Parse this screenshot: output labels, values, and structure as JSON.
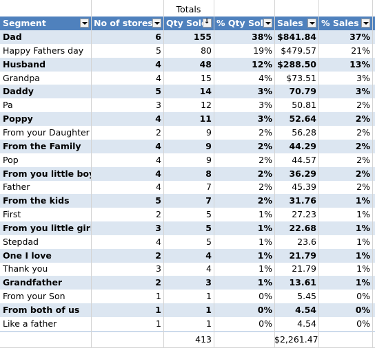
{
  "title": "Totals",
  "columns": [
    "Segment",
    "No of stores",
    "Qty Sold",
    "% Qty Sold",
    "Sales",
    "% Sales"
  ],
  "rows": [
    [
      "Dad",
      "6",
      "155",
      "38%",
      "$841.84",
      "37%"
    ],
    [
      "Happy Fathers day",
      "5",
      "80",
      "19%",
      "$479.57",
      "21%"
    ],
    [
      "Husband",
      "4",
      "48",
      "12%",
      "$288.50",
      "13%"
    ],
    [
      "Grandpa",
      "4",
      "15",
      "4%",
      "$73.51",
      "3%"
    ],
    [
      "Daddy",
      "5",
      "14",
      "3%",
      "70.79",
      "3%"
    ],
    [
      "Pa",
      "3",
      "12",
      "3%",
      "50.81",
      "2%"
    ],
    [
      "Poppy",
      "4",
      "11",
      "3%",
      "52.64",
      "2%"
    ],
    [
      "From your Daughter",
      "2",
      "9",
      "2%",
      "56.28",
      "2%"
    ],
    [
      "From the Family",
      "4",
      "9",
      "2%",
      "44.29",
      "2%"
    ],
    [
      "Pop",
      "4",
      "9",
      "2%",
      "44.57",
      "2%"
    ],
    [
      "From you little boy",
      "4",
      "8",
      "2%",
      "36.29",
      "2%"
    ],
    [
      "Father",
      "4",
      "7",
      "2%",
      "45.39",
      "2%"
    ],
    [
      "From the kids",
      "5",
      "7",
      "2%",
      "31.76",
      "1%"
    ],
    [
      "First",
      "2",
      "5",
      "1%",
      "27.23",
      "1%"
    ],
    [
      "From you little girl",
      "3",
      "5",
      "1%",
      "22.68",
      "1%"
    ],
    [
      "Stepdad",
      "4",
      "5",
      "1%",
      "23.6",
      "1%"
    ],
    [
      "One I love",
      "2",
      "4",
      "1%",
      "21.79",
      "1%"
    ],
    [
      "Thank you",
      "3",
      "4",
      "1%",
      "21.79",
      "1%"
    ],
    [
      "Grandfather",
      "2",
      "3",
      "1%",
      "13.61",
      "1%"
    ],
    [
      "From your Son",
      "1",
      "1",
      "0%",
      "5.45",
      "0%"
    ],
    [
      "From both of us",
      "1",
      "1",
      "0%",
      "4.54",
      "0%"
    ],
    [
      "Like a father",
      "1",
      "1",
      "0%",
      "4.54",
      "0%"
    ]
  ],
  "totals": {
    "qty": "413",
    "sales": "$2,261.47"
  },
  "colors": {
    "header": "#4f81bd",
    "band": "#dce6f1"
  }
}
